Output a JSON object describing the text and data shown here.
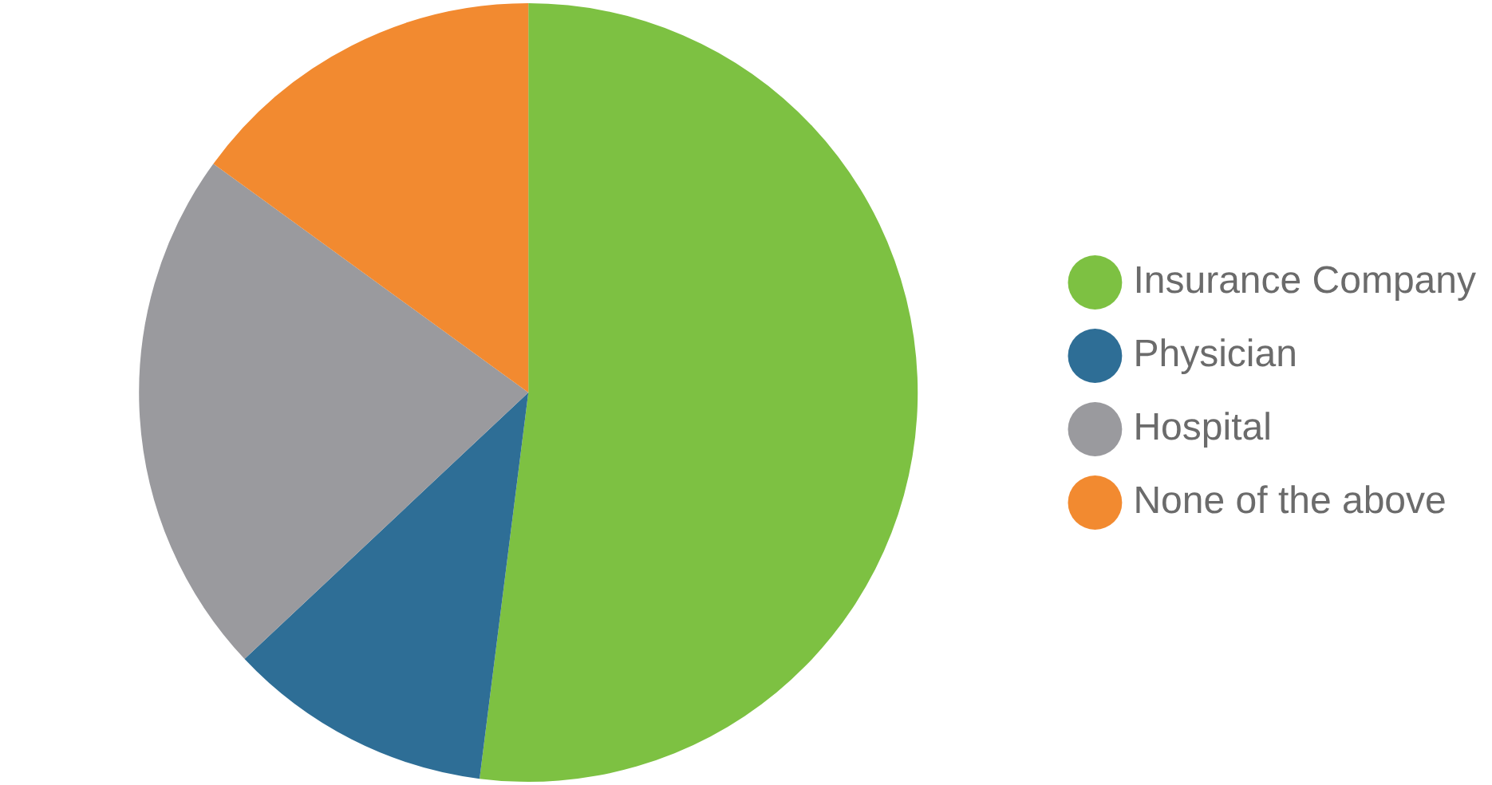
{
  "chart_data": {
    "type": "pie",
    "categories": [
      "Insurance Company",
      "Physician",
      "Hospital",
      "None of the above"
    ],
    "values": [
      52,
      11,
      22,
      15
    ],
    "colors": [
      "#7dc142",
      "#2e6e96",
      "#9a9a9e",
      "#f28a30"
    ],
    "legend": "right"
  }
}
